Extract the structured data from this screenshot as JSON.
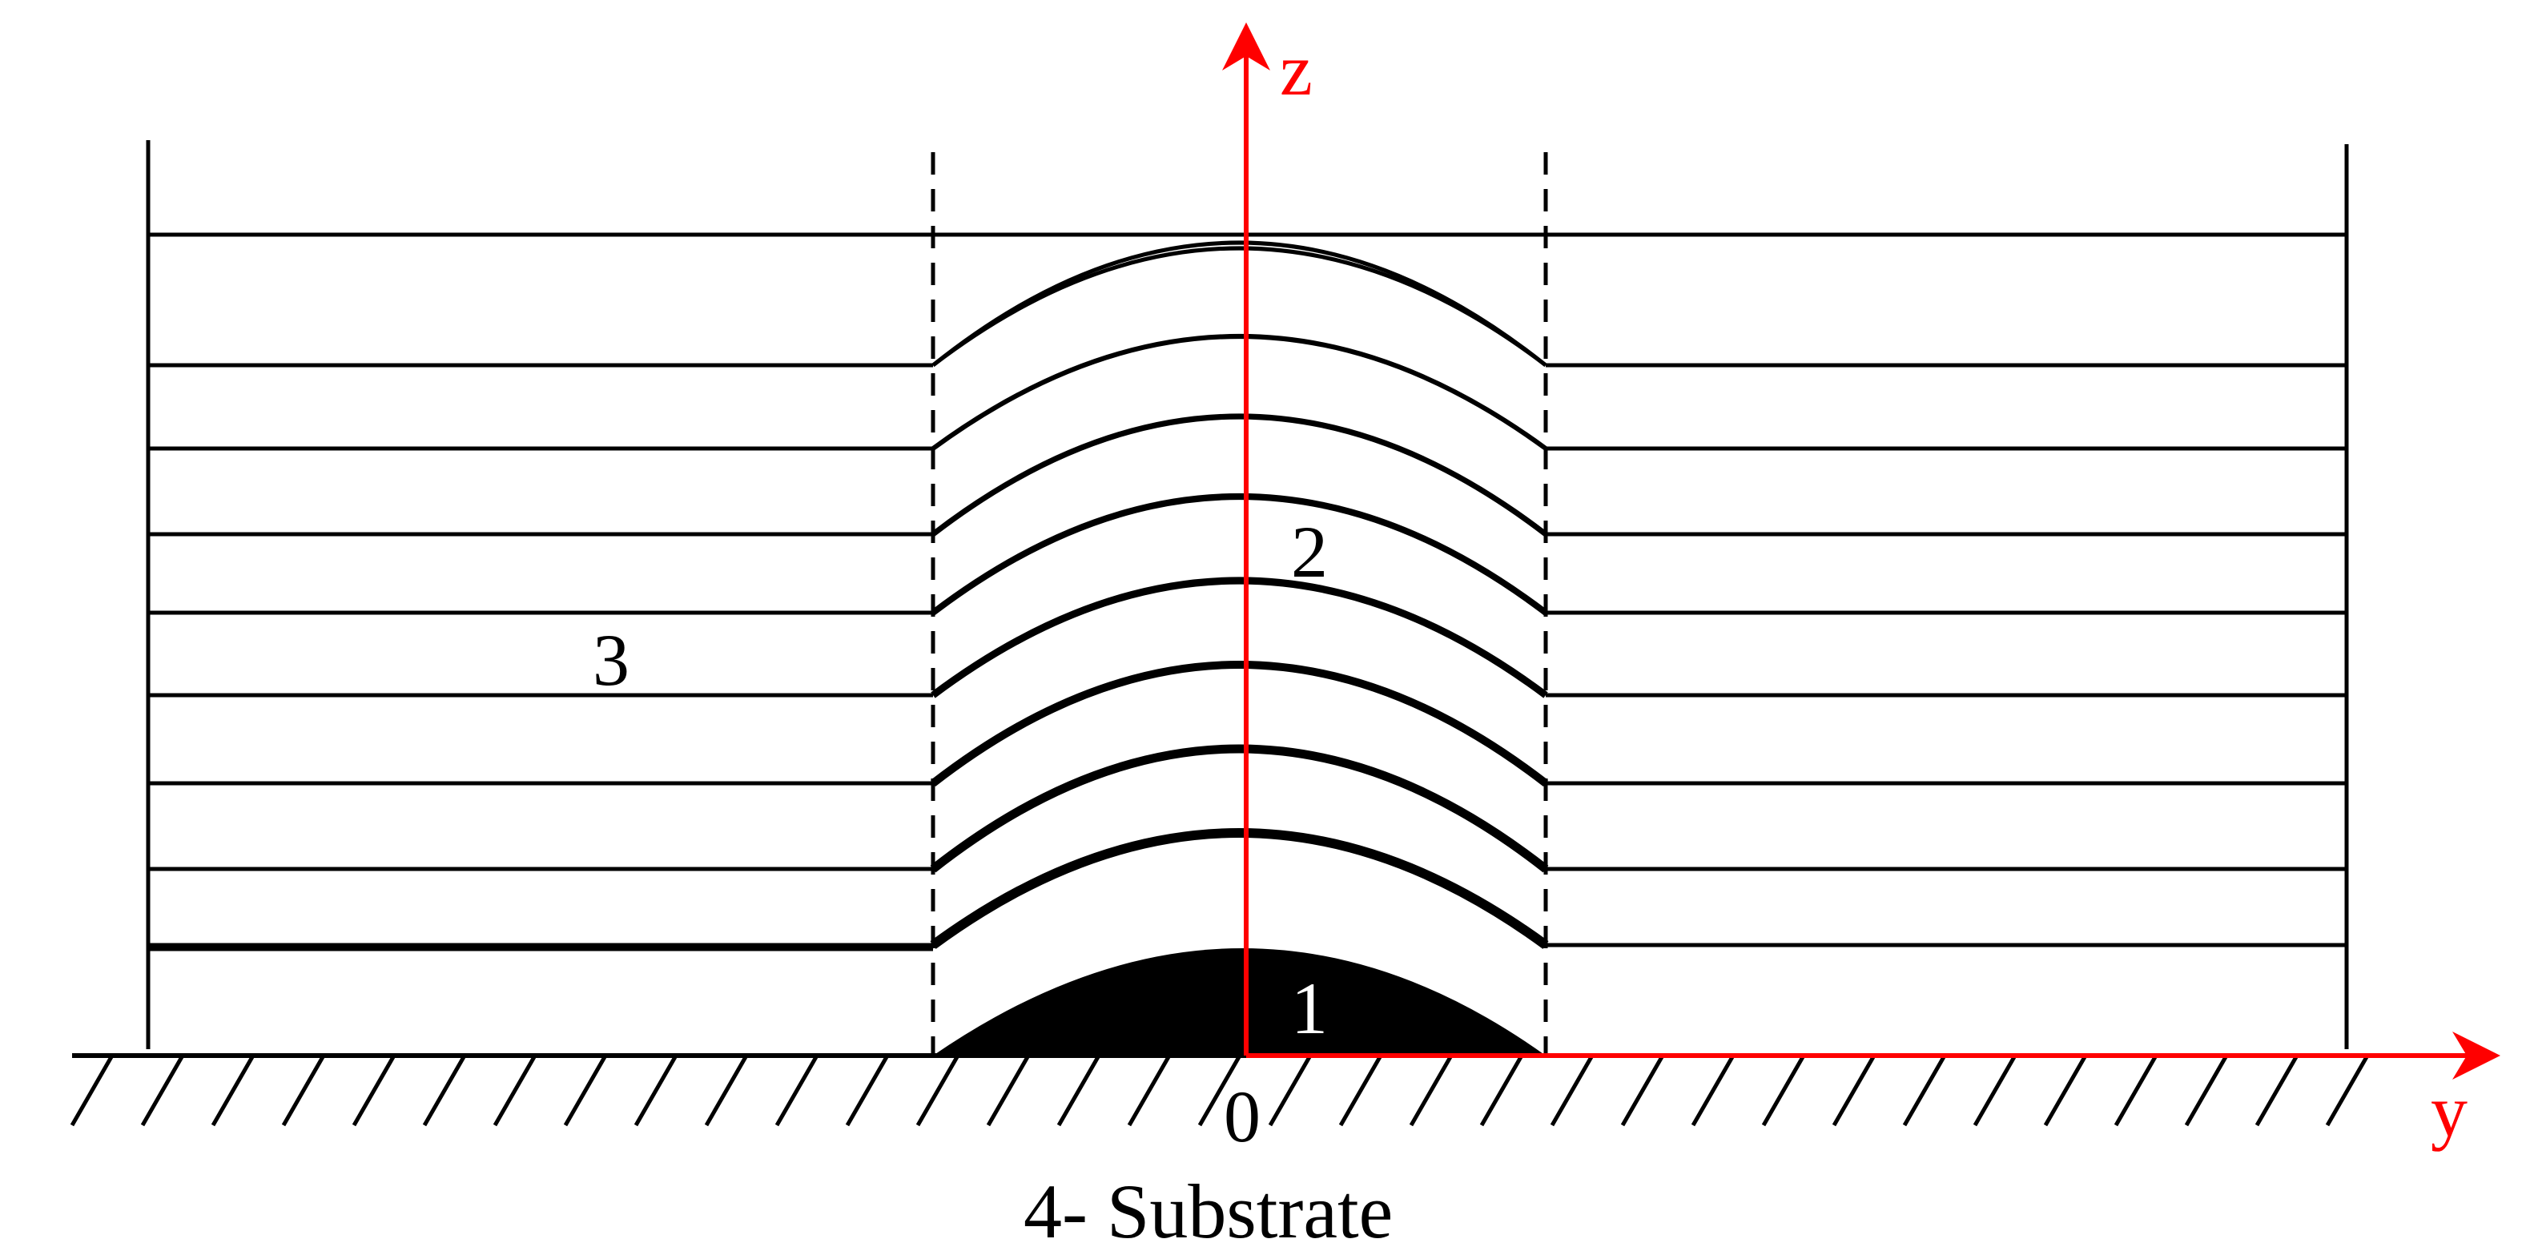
{
  "colors": {
    "ink": "#000000",
    "axis": "#ff0000",
    "background": "#ffffff"
  },
  "axes": {
    "z_label": "z",
    "y_label": "y",
    "origin_label": "0"
  },
  "regions": {
    "region1_label": "1",
    "region2_label": "2",
    "region3_label": "3"
  },
  "caption": "4- Substrate",
  "hatch_marks": 33
}
